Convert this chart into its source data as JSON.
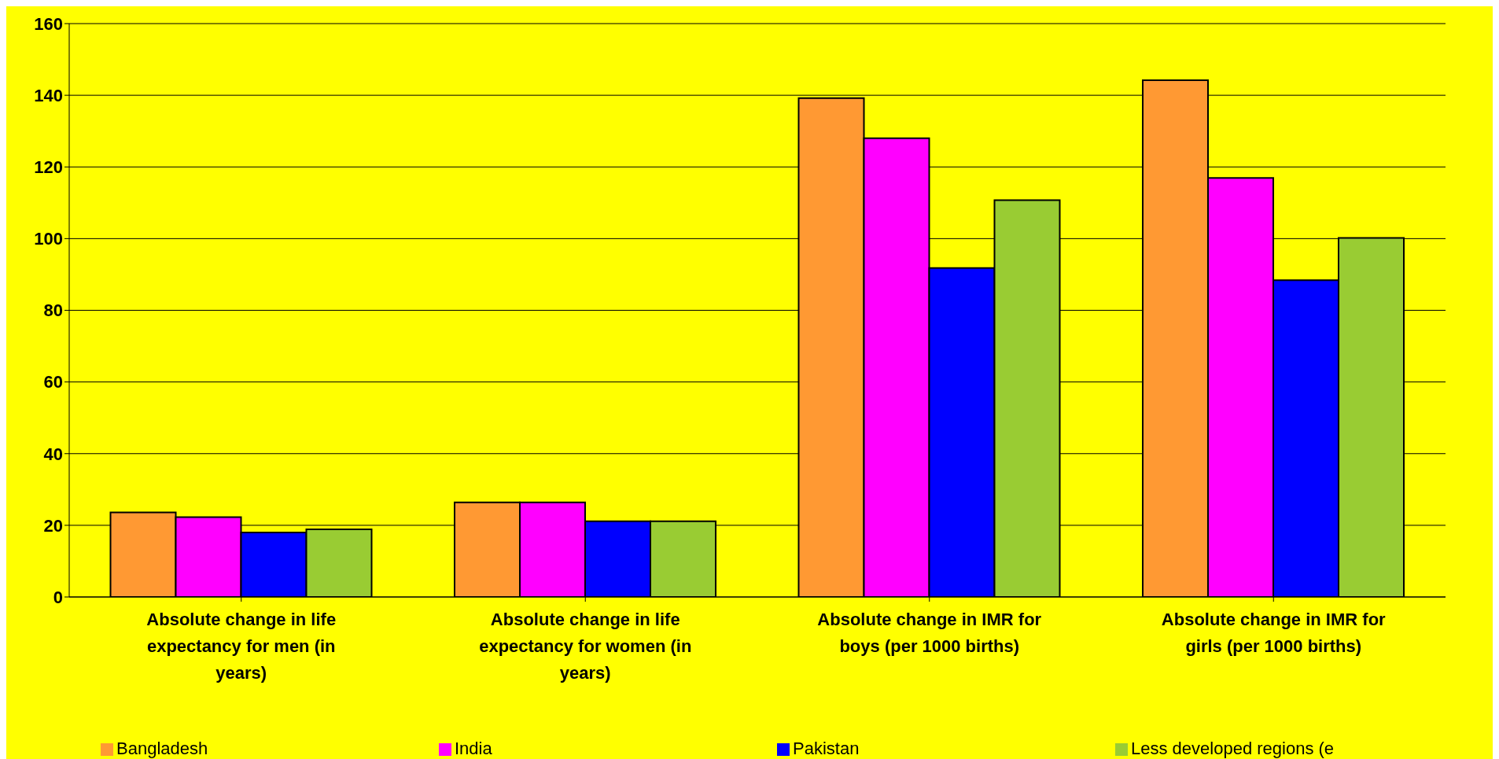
{
  "chart_data": {
    "type": "bar",
    "categories": [
      "Absolute change in life expectancy for men (in years)",
      "Absolute change in life expectancy for women (in years)",
      "Absolute change in IMR for boys (per 1000 births)",
      "Absolute change in IMR for girls (per 1000 births)"
    ],
    "series": [
      {
        "name": "Bangladesh",
        "color": "#ff9933",
        "values": [
          23.6,
          26.4,
          139.2,
          144.2
        ]
      },
      {
        "name": "India",
        "color": "#ff00ff",
        "values": [
          22.3,
          26.4,
          128,
          116.9
        ]
      },
      {
        "name": "Pakistan",
        "color": "#0000ff",
        "values": [
          18,
          21.1,
          91.8,
          88.4
        ]
      },
      {
        "name": "Less developed regions (e",
        "color": "#99cc33",
        "values": [
          18.9,
          21.1,
          110.7,
          100.2
        ]
      }
    ],
    "ylim": [
      0,
      160
    ],
    "yticks": [
      0,
      20,
      40,
      60,
      80,
      100,
      120,
      140,
      160
    ],
    "grid": "y",
    "legend": "bottom"
  }
}
